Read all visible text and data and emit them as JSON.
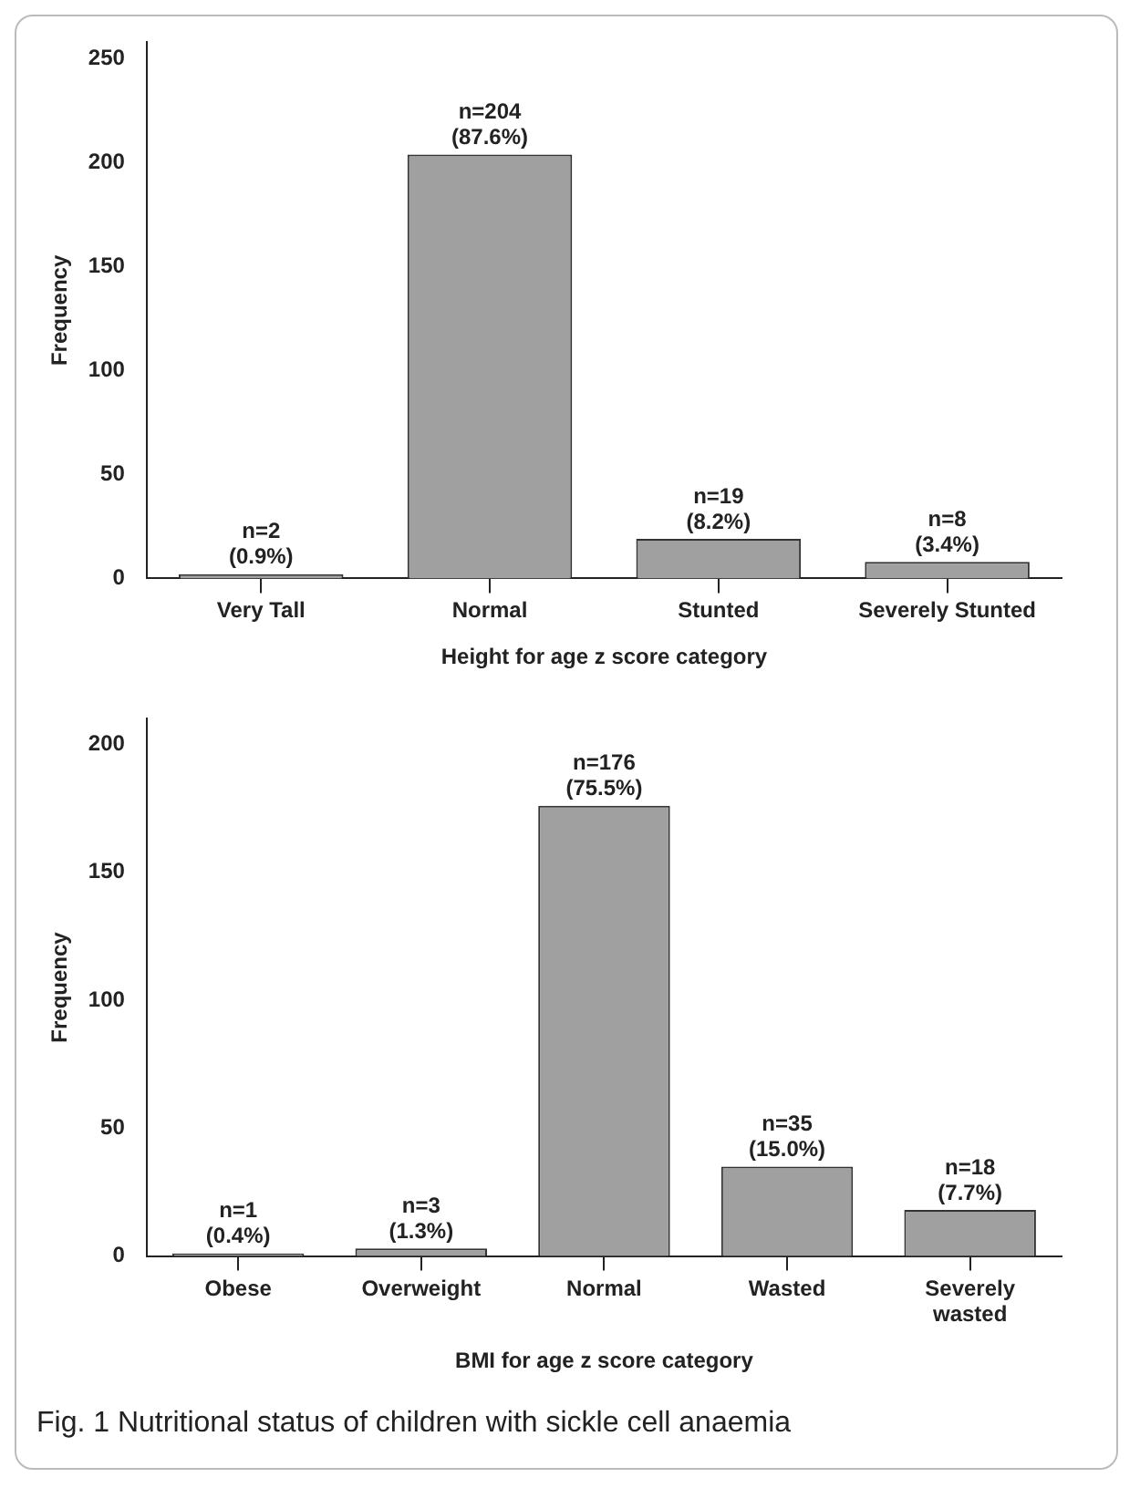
{
  "chart_data": [
    {
      "type": "bar",
      "xlabel": "Height for age z score category",
      "ylabel": "Frequency",
      "categories": [
        "Very Tall",
        "Normal",
        "Stunted",
        "Severely Stunted"
      ],
      "values": [
        2,
        204,
        19,
        8
      ],
      "color": "#a0a0a0",
      "value_labels": [
        "n=2 (0.9%)",
        "n=204 (87.6%)",
        "n=19 (8.2%)",
        "n=8 (3.4%)"
      ],
      "ylim": [
        0,
        258
      ],
      "yticks": [
        0,
        50,
        100,
        150,
        200,
        250
      ],
      "grid": false,
      "legend": false
    },
    {
      "type": "bar",
      "xlabel": "BMI for age z score category",
      "ylabel": "Frequency",
      "categories": [
        "Obese",
        "Overweight",
        "Normal",
        "Wasted",
        "Severely wasted"
      ],
      "values": [
        1,
        3,
        176,
        35,
        18
      ],
      "color": "#a0a0a0",
      "value_labels": [
        "n=1 (0.4%)",
        "n=3 (1.3%)",
        "n=176 (75.5%)",
        "n=35 (15.0%)",
        "n=18 (7.7%)"
      ],
      "ylim": [
        0,
        210
      ],
      "yticks": [
        0,
        50,
        100,
        150,
        200
      ],
      "grid": false,
      "legend": false,
      "annotations": [
        "Fig. 1 Nutritional status of children with sickle cell anaemia"
      ]
    }
  ]
}
